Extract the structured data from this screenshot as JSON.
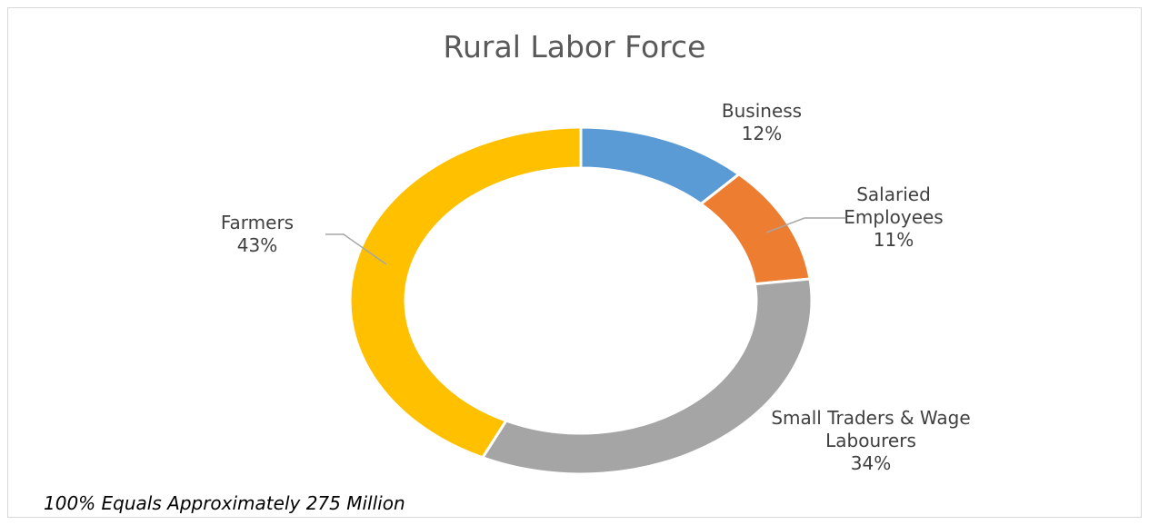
{
  "chart_data": {
    "type": "pie",
    "donut": true,
    "title": "Rural Labor Force",
    "categories": [
      "Business",
      "Salaried Employees",
      "Small Traders & Wage Labourers",
      "Farmers"
    ],
    "values": [
      12,
      11,
      34,
      43
    ],
    "value_labels": [
      "12%",
      "11%",
      "34%",
      "43%"
    ],
    "colors": [
      "#5b9bd5",
      "#ed7d31",
      "#a5a5a5",
      "#ffc000"
    ],
    "note": "100% Equals Approximately 275 Million"
  }
}
